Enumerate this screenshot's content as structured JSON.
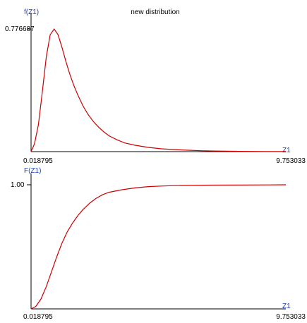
{
  "title": "new distribution",
  "colors": {
    "curve": "#cc0000",
    "axis": "#000000",
    "axis_label": "#1f3fb5"
  },
  "chart_data": [
    {
      "type": "line",
      "ylabel": "f(Z1)",
      "xlabel": "Z1",
      "x_tick_labels": [
        "0.018795",
        "9.753033"
      ],
      "y_tick_labels": [
        "0.776687"
      ],
      "xlim": [
        0.018795,
        9.753033
      ],
      "ylim": [
        0,
        0.776687
      ],
      "series": [
        {
          "x": [
            0.0188,
            0.15,
            0.3,
            0.45,
            0.6,
            0.75,
            0.9,
            1.05,
            1.2,
            1.35,
            1.5,
            1.65,
            1.8,
            2.0,
            2.2,
            2.4,
            2.6,
            2.8,
            3.0,
            3.3,
            3.6,
            4.0,
            4.5,
            5.0,
            5.5,
            6.0,
            6.5,
            7.0,
            7.5,
            8.0,
            8.5,
            9.0,
            9.753
          ],
          "y": [
            0.0,
            0.05,
            0.17,
            0.38,
            0.6,
            0.74,
            0.776,
            0.74,
            0.66,
            0.57,
            0.49,
            0.42,
            0.36,
            0.29,
            0.235,
            0.19,
            0.155,
            0.125,
            0.1,
            0.075,
            0.055,
            0.04,
            0.027,
            0.018,
            0.013,
            0.009,
            0.006,
            0.004,
            0.003,
            0.002,
            0.0015,
            0.001,
            0.0005
          ]
        }
      ]
    },
    {
      "type": "line",
      "ylabel": "F(Z1)",
      "xlabel": "Z1",
      "x_tick_labels": [
        "0.018795",
        "9.753033"
      ],
      "y_tick_labels": [
        "1.00"
      ],
      "xlim": [
        0.018795,
        9.753033
      ],
      "ylim": [
        0,
        1.0
      ],
      "series": [
        {
          "x": [
            0.0188,
            0.2,
            0.4,
            0.6,
            0.8,
            1.0,
            1.2,
            1.4,
            1.6,
            1.8,
            2.0,
            2.25,
            2.5,
            2.75,
            3.0,
            3.5,
            4.0,
            4.5,
            5.0,
            5.5,
            6.0,
            7.0,
            8.0,
            9.0,
            9.753
          ],
          "y": [
            0.0,
            0.02,
            0.08,
            0.18,
            0.3,
            0.42,
            0.53,
            0.62,
            0.69,
            0.75,
            0.8,
            0.85,
            0.89,
            0.92,
            0.94,
            0.96,
            0.975,
            0.985,
            0.99,
            0.993,
            0.995,
            0.997,
            0.998,
            0.999,
            1.0
          ]
        }
      ]
    }
  ]
}
